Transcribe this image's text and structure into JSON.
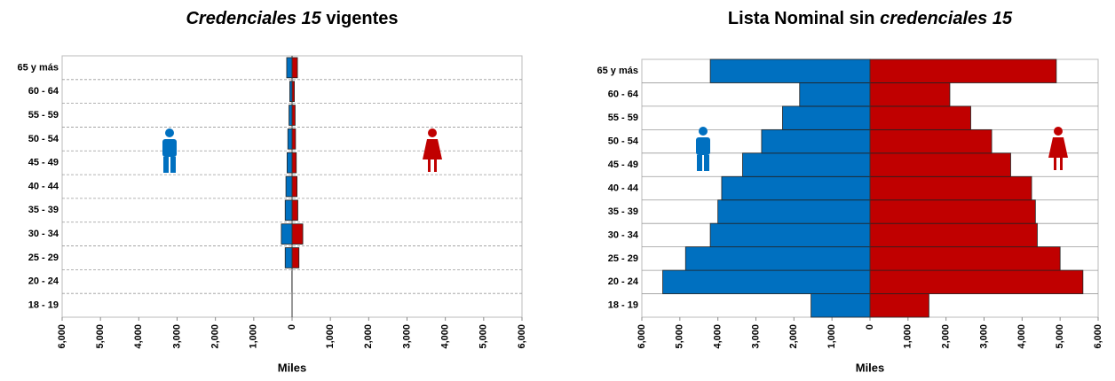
{
  "chart_data": [
    {
      "type": "pyramid",
      "title": [
        {
          "text": "Credenciales 15",
          "italic": true
        },
        {
          "text": " vigentes",
          "italic": false
        }
      ],
      "x_label": "Miles",
      "categories": [
        "18 - 19",
        "20 - 24",
        "25 - 29",
        "30 - 34",
        "35 - 39",
        "40 - 44",
        "45 - 49",
        "50 - 54",
        "55 - 59",
        "60 - 64",
        "65 y más"
      ],
      "series": [
        {
          "color": "#0070c0",
          "values": [
            0,
            -5,
            -180,
            -280,
            -180,
            -160,
            -130,
            -110,
            -80,
            -60,
            -140
          ]
        },
        {
          "color": "#c00000",
          "values": [
            0,
            0,
            180,
            280,
            150,
            130,
            110,
            90,
            80,
            60,
            140
          ]
        }
      ],
      "xlim": [
        -6000,
        6000
      ],
      "xticks": [
        {
          "value": -6000,
          "label": "6,000"
        },
        {
          "value": -5000,
          "label": "5,000"
        },
        {
          "value": -4000,
          "label": "4,000"
        },
        {
          "value": -3000,
          "label": "3,000"
        },
        {
          "value": -2000,
          "label": "2,000"
        },
        {
          "value": -1000,
          "label": "1,000"
        },
        0,
        {
          "value": 1000,
          "label": "1,000"
        },
        {
          "value": 2000,
          "label": "2,000"
        },
        {
          "value": 3000,
          "label": "3,000"
        },
        {
          "value": 4000,
          "label": "4,000"
        },
        {
          "value": 5000,
          "label": "5,000"
        },
        {
          "value": 6000,
          "label": "6,000"
        }
      ],
      "grid": "dashed"
    },
    {
      "type": "pyramid",
      "title": [
        {
          "text": "Lista Nominal sin ",
          "italic": false
        },
        {
          "text": "credenciales 15",
          "italic": true
        }
      ],
      "x_label": "Miles",
      "categories": [
        "18 - 19",
        "20 - 24",
        "25 - 29",
        "30 - 34",
        "35 - 39",
        "40 - 44",
        "45 - 49",
        "50 - 54",
        "55 - 59",
        "60 - 64",
        "65 y más"
      ],
      "series": [
        {
          "color": "#0070c0",
          "values": [
            -1550,
            -5450,
            -4850,
            -4200,
            -4000,
            -3900,
            -3350,
            -2850,
            -2300,
            -1850,
            -4200
          ]
        },
        {
          "color": "#c00000",
          "values": [
            1550,
            5600,
            5000,
            4400,
            4350,
            4250,
            3700,
            3200,
            2650,
            2100,
            4900
          ]
        }
      ],
      "xlim": [
        -6000,
        6000
      ],
      "xticks": [
        {
          "value": -6000,
          "label": "6,000"
        },
        {
          "value": -5000,
          "label": "5,000"
        },
        {
          "value": -4000,
          "label": "4,000"
        },
        {
          "value": -3000,
          "label": "3,000"
        },
        {
          "value": -2000,
          "label": "2,000"
        },
        {
          "value": -1000,
          "label": "1,000"
        },
        0,
        {
          "value": 1000,
          "label": "1,000"
        },
        {
          "value": 2000,
          "label": "2,000"
        },
        {
          "value": 3000,
          "label": "3,000"
        },
        {
          "value": 4000,
          "label": "4,000"
        },
        {
          "value": 5000,
          "label": "5,000"
        },
        {
          "value": 6000,
          "label": "6,000"
        }
      ],
      "grid": "solid"
    }
  ]
}
